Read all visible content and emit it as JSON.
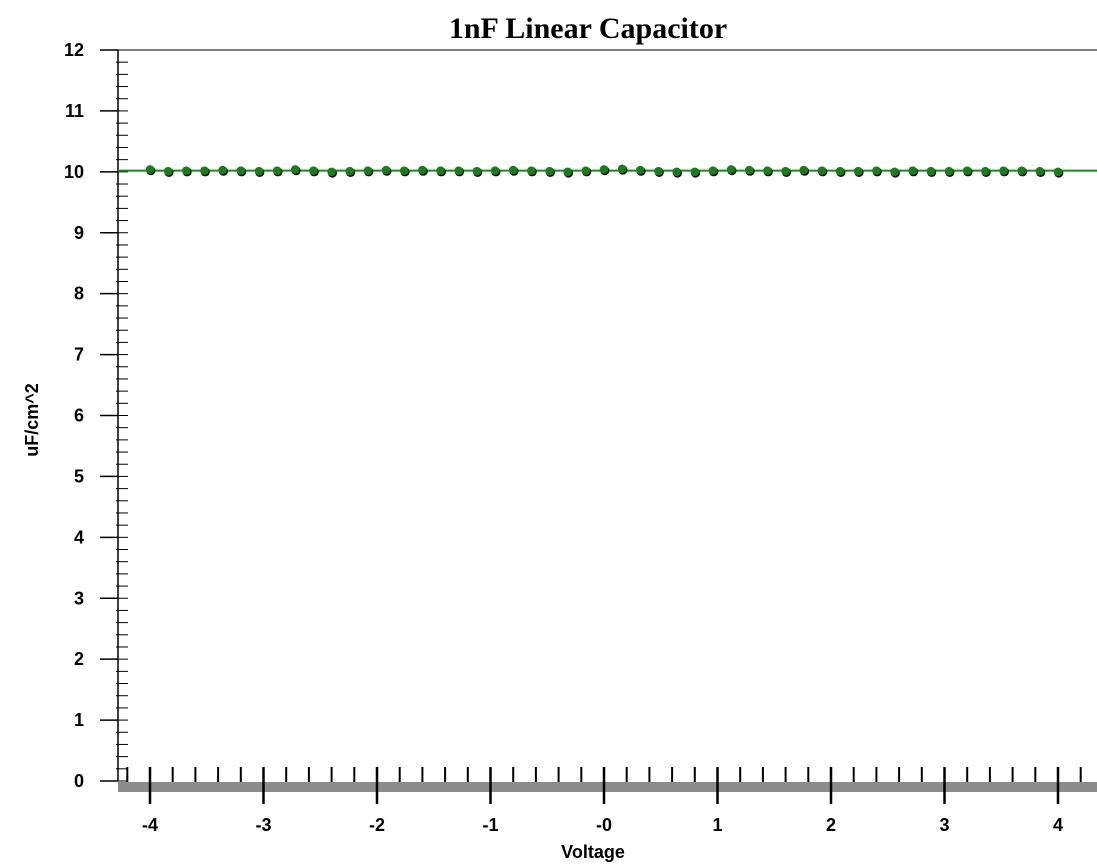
{
  "chart_data": {
    "type": "scatter",
    "title": "1nF Linear Capacitor",
    "xlabel": "Voltage",
    "ylabel": "uF/cm^2",
    "xlim": [
      -4.3,
      4.3
    ],
    "ylim": [
      0,
      12
    ],
    "x_ticks": [
      "-4",
      "-3",
      "-2",
      "-1",
      "-0",
      "1",
      "2",
      "3",
      "4"
    ],
    "x_tick_values": [
      -4,
      -3,
      -2,
      -1,
      0,
      1,
      2,
      3,
      4
    ],
    "y_ticks": [
      "0",
      "1",
      "2",
      "3",
      "4",
      "5",
      "6",
      "7",
      "8",
      "9",
      "10",
      "11",
      "12"
    ],
    "y_tick_values": [
      0,
      1,
      2,
      3,
      4,
      5,
      6,
      7,
      8,
      9,
      10,
      11,
      12
    ],
    "reference_line": {
      "y": 10.02,
      "color": "#1a8c1a"
    },
    "series": [
      {
        "marker_color": "#1f7a1f",
        "x": [
          -4.0,
          -3.84,
          -3.68,
          -3.52,
          -3.36,
          -3.2,
          -3.04,
          -2.88,
          -2.72,
          -2.56,
          -2.4,
          -2.24,
          -2.08,
          -1.92,
          -1.76,
          -1.6,
          -1.44,
          -1.28,
          -1.12,
          -0.96,
          -0.8,
          -0.64,
          -0.48,
          -0.32,
          -0.16,
          0.0,
          0.16,
          0.32,
          0.48,
          0.64,
          0.8,
          0.96,
          1.12,
          1.28,
          1.44,
          1.6,
          1.76,
          1.92,
          2.08,
          2.24,
          2.4,
          2.56,
          2.72,
          2.88,
          3.04,
          3.2,
          3.36,
          3.52,
          3.68,
          3.84,
          4.0
        ],
        "y": [
          10.04,
          10.01,
          10.02,
          10.02,
          10.03,
          10.02,
          10.01,
          10.02,
          10.04,
          10.02,
          10.0,
          10.01,
          10.02,
          10.03,
          10.02,
          10.03,
          10.02,
          10.02,
          10.01,
          10.02,
          10.03,
          10.02,
          10.01,
          10.0,
          10.02,
          10.04,
          10.05,
          10.03,
          10.01,
          10.0,
          10.0,
          10.02,
          10.04,
          10.03,
          10.02,
          10.01,
          10.03,
          10.02,
          10.01,
          10.01,
          10.02,
          10.0,
          10.02,
          10.01,
          10.01,
          10.02,
          10.01,
          10.02,
          10.02,
          10.01,
          10.0
        ]
      }
    ],
    "grid": false,
    "colors": {
      "axis": "#000000",
      "baseline_bar": "#8c8c8c",
      "line": "#1a8c1a",
      "marker": "#1f7a1f"
    }
  }
}
